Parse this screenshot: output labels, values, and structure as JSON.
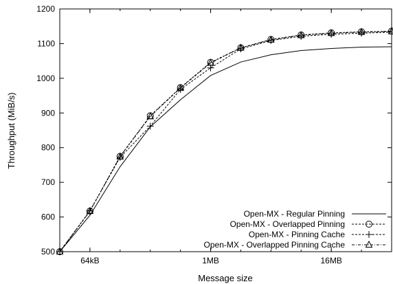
{
  "chart_data": {
    "type": "line",
    "xlabel": "Message size",
    "ylabel": "Throughput (MiB/s)",
    "x_scale": "log2",
    "x_unit": "kB",
    "xlim": [
      32,
      65536
    ],
    "ylim": [
      500,
      1200
    ],
    "grid": false,
    "legend_position": "bottom-right",
    "x_ticks": [
      {
        "value": 64,
        "label": "64kB"
      },
      {
        "value": 1024,
        "label": "1MB"
      },
      {
        "value": 16384,
        "label": "16MB"
      }
    ],
    "y_ticks": [
      500,
      600,
      700,
      800,
      900,
      1000,
      1100,
      1200
    ],
    "x": [
      32,
      64,
      128,
      256,
      512,
      1024,
      2048,
      4096,
      8192,
      16384,
      32768,
      65536
    ],
    "series": [
      {
        "name": "Open-MX - Regular Pinning",
        "marker": "none",
        "dash": "solid",
        "values": [
          500,
          605,
          745,
          860,
          938,
          1008,
          1047,
          1068,
          1080,
          1086,
          1090,
          1091
        ]
      },
      {
        "name": "Open-MX - Overlapped Pinning",
        "marker": "circle",
        "dash": "dash",
        "values": [
          500,
          617,
          775,
          892,
          973,
          1046,
          1088,
          1112,
          1125,
          1131,
          1134,
          1136
        ]
      },
      {
        "name": "Open-MX - Pinning Cache",
        "marker": "plus",
        "dash": "dash",
        "values": [
          500,
          618,
          772,
          862,
          968,
          1030,
          1085,
          1109,
          1121,
          1127,
          1130,
          1133
        ]
      },
      {
        "name": "Open-MX - Overlapped Pinning Cache",
        "marker": "triangle",
        "dash": "dashdot",
        "values": [
          500,
          617,
          774,
          890,
          972,
          1044,
          1088,
          1111,
          1124,
          1130,
          1133,
          1135
        ]
      }
    ]
  }
}
